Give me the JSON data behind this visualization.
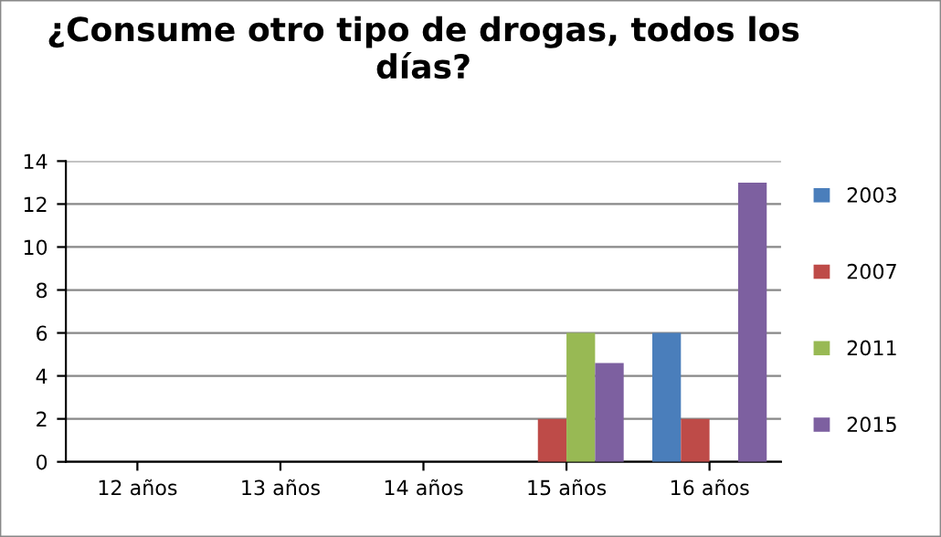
{
  "chart_data": {
    "type": "bar",
    "title": "¿Consume otro tipo de drogas, todos los días?",
    "categories": [
      "12 años",
      "13 años",
      "14 años",
      "15 años",
      "16 años"
    ],
    "series": [
      {
        "name": "2003",
        "color": "#4a7ebb",
        "values": [
          0,
          0,
          0,
          0,
          6
        ]
      },
      {
        "name": "2007",
        "color": "#be4b48",
        "values": [
          0,
          0,
          0,
          2,
          2
        ]
      },
      {
        "name": "2011",
        "color": "#98b954",
        "values": [
          0,
          0,
          0,
          6,
          0
        ]
      },
      {
        "name": "2015",
        "color": "#7d60a0",
        "values": [
          0,
          0,
          0,
          4.6,
          13
        ]
      }
    ],
    "ylim": [
      0,
      14
    ],
    "yticks": [
      0,
      2,
      4,
      6,
      8,
      10,
      12,
      14
    ],
    "grid": "y",
    "legend": "right"
  }
}
